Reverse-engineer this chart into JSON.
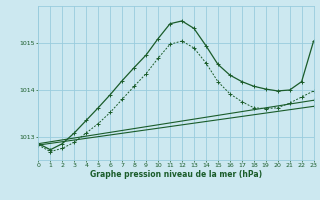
{
  "title": "Graphe pression niveau de la mer (hPa)",
  "bg_color": "#cce8f0",
  "grid_color": "#99ccdd",
  "line_color": "#1a5c2a",
  "xlim": [
    0,
    23
  ],
  "ylim": [
    1012.5,
    1015.8
  ],
  "yticks": [
    1013,
    1014,
    1015
  ],
  "xticks": [
    0,
    1,
    2,
    3,
    4,
    5,
    6,
    7,
    8,
    9,
    10,
    11,
    12,
    13,
    14,
    15,
    16,
    17,
    18,
    19,
    20,
    21,
    22,
    23
  ],
  "series_upper": {
    "x": [
      0,
      1,
      2,
      3,
      4,
      5,
      6,
      7,
      8,
      9,
      10,
      11,
      12,
      13,
      14,
      15,
      16,
      17,
      18,
      19,
      20,
      21,
      22,
      23
    ],
    "y": [
      1012.85,
      1012.72,
      1012.85,
      1013.08,
      1013.35,
      1013.62,
      1013.9,
      1014.2,
      1014.48,
      1014.75,
      1015.1,
      1015.42,
      1015.48,
      1015.32,
      1014.95,
      1014.55,
      1014.32,
      1014.18,
      1014.08,
      1014.02,
      1013.98,
      1014.0,
      1014.18,
      1015.05
    ]
  },
  "series_lower": {
    "x": [
      0,
      1,
      2,
      3,
      4,
      5,
      6,
      7,
      8,
      9,
      10,
      11,
      12,
      13,
      14,
      15,
      16,
      17,
      18,
      19,
      20,
      21,
      22,
      23
    ],
    "y": [
      1012.82,
      1012.68,
      1012.75,
      1012.88,
      1013.08,
      1013.28,
      1013.52,
      1013.8,
      1014.08,
      1014.35,
      1014.68,
      1014.98,
      1015.05,
      1014.9,
      1014.58,
      1014.18,
      1013.92,
      1013.75,
      1013.62,
      1013.6,
      1013.62,
      1013.72,
      1013.85,
      1013.98
    ]
  },
  "series_diag1": {
    "x": [
      0,
      23
    ],
    "y": [
      1012.85,
      1013.78
    ]
  },
  "series_diag2": {
    "x": [
      0,
      23
    ],
    "y": [
      1012.82,
      1013.65
    ]
  }
}
